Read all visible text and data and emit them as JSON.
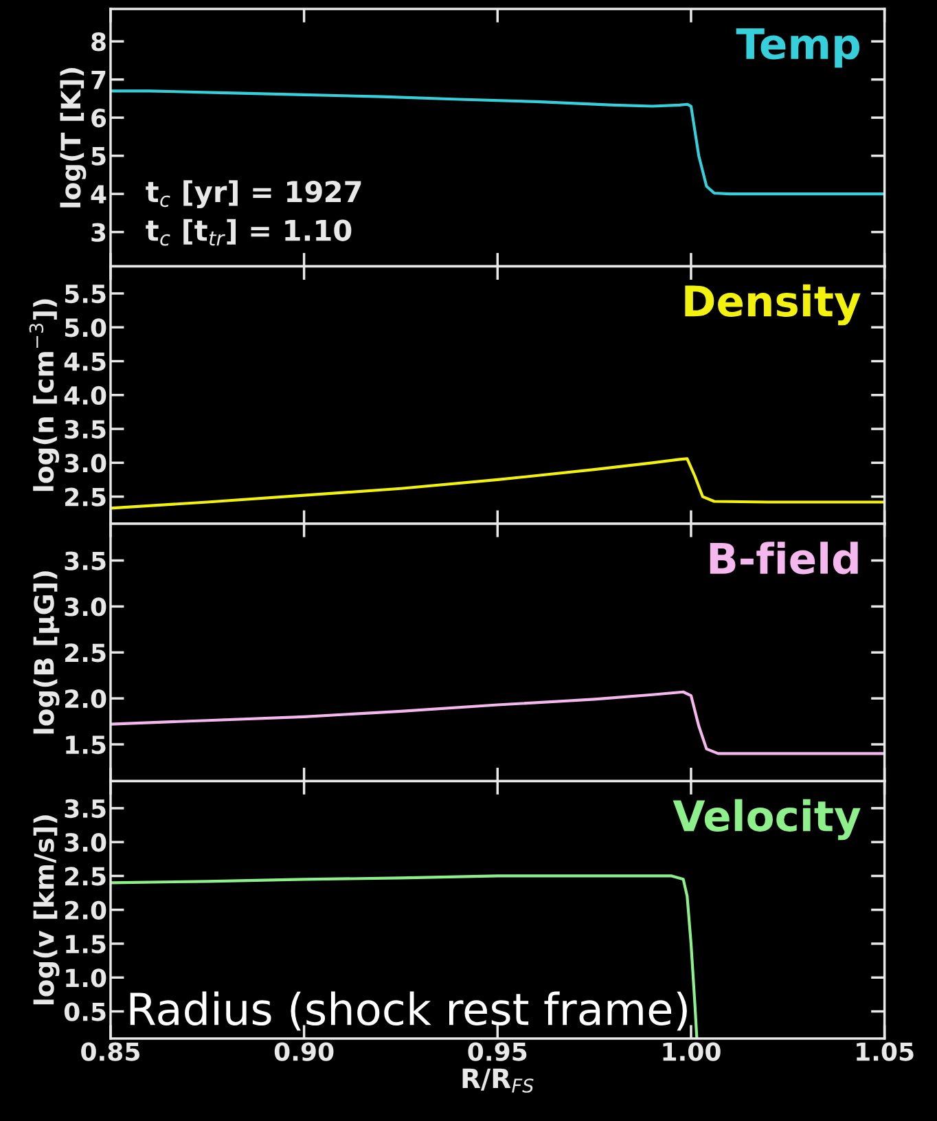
{
  "chart_data": [
    {
      "type": "line",
      "ylabel": "log(T [K])",
      "xlim": [
        0.85,
        1.05
      ],
      "xticks": [
        0.85,
        0.9,
        0.95,
        1.0,
        1.05
      ],
      "ylim": [
        2.1,
        8.85
      ],
      "yticks": [
        3,
        4,
        5,
        6,
        7,
        8
      ],
      "tick_labels": "y",
      "x": [
        0.85,
        0.86,
        0.88,
        0.9,
        0.92,
        0.94,
        0.96,
        0.98,
        0.99,
        0.997,
        0.999,
        1.0,
        1.002,
        1.004,
        1.006,
        1.01,
        1.03,
        1.05
      ],
      "series": [
        {
          "name": "Temp",
          "color": "#35d0dc",
          "values": [
            6.7,
            6.7,
            6.65,
            6.6,
            6.55,
            6.48,
            6.42,
            6.33,
            6.3,
            6.33,
            6.35,
            6.3,
            5.0,
            4.2,
            4.02,
            4.0,
            4.0,
            4.0
          ]
        }
      ],
      "annotations": [
        "t$_{c}$ [yr] = 1927",
        "t$_{c}$ [t$_{tr}$] = 1.10"
      ]
    },
    {
      "type": "line",
      "ylabel": "log(n [cm$^{−3}$])",
      "xlim": [
        0.85,
        1.05
      ],
      "xticks": [
        0.85,
        0.9,
        0.95,
        1.0,
        1.05
      ],
      "ylim": [
        2.1,
        5.9
      ],
      "yticks": [
        2.5,
        {
          "value": 3,
          "label": "3.0"
        },
        3.5,
        {
          "value": 4,
          "label": "4.0"
        },
        4.5,
        {
          "value": 5,
          "label": "5.0"
        },
        5.5
      ],
      "tick_labels": "y",
      "x": [
        0.85,
        0.875,
        0.9,
        0.925,
        0.95,
        0.975,
        0.99,
        0.997,
        0.999,
        1.001,
        1.003,
        1.006,
        1.02,
        1.05
      ],
      "series": [
        {
          "name": "Density",
          "color": "#f2f20c",
          "values": [
            2.33,
            2.42,
            2.52,
            2.62,
            2.75,
            2.9,
            3.0,
            3.05,
            3.06,
            2.8,
            2.5,
            2.43,
            2.42,
            2.42
          ]
        }
      ]
    },
    {
      "type": "line",
      "ylabel": "log(B [μG])",
      "xlim": [
        0.85,
        1.05
      ],
      "xticks": [
        0.85,
        0.9,
        0.95,
        1.0,
        1.05
      ],
      "ylim": [
        1.1,
        3.9
      ],
      "yticks": [
        1.5,
        {
          "value": 2,
          "label": "2.0"
        },
        2.5,
        {
          "value": 3,
          "label": "3.0"
        },
        3.5
      ],
      "tick_labels": "y",
      "x": [
        0.85,
        0.875,
        0.9,
        0.925,
        0.95,
        0.975,
        0.99,
        0.998,
        1.0,
        1.002,
        1.004,
        1.007,
        1.02,
        1.05
      ],
      "series": [
        {
          "name": "B-field",
          "color": "#f4b8ee",
          "values": [
            1.72,
            1.76,
            1.8,
            1.86,
            1.93,
            1.99,
            2.04,
            2.07,
            2.03,
            1.7,
            1.45,
            1.4,
            1.4,
            1.4
          ]
        }
      ]
    },
    {
      "type": "line",
      "ylabel": "log(v [km/s])",
      "xlabel": "R/R$_{FS}$",
      "xlim": [
        0.85,
        1.05
      ],
      "xticks": [
        0.85,
        {
          "value": 0.9,
          "label": "0.90"
        },
        0.95,
        {
          "value": 1.0,
          "label": "1.00"
        },
        1.05
      ],
      "ylim": [
        0.1,
        3.9
      ],
      "yticks": [
        0.5,
        {
          "value": 1,
          "label": "1.0"
        },
        1.5,
        {
          "value": 2,
          "label": "2.0"
        },
        2.5,
        {
          "value": 3,
          "label": "3.0"
        },
        3.5
      ],
      "x": [
        0.85,
        0.875,
        0.9,
        0.925,
        0.95,
        0.975,
        0.995,
        0.998,
        0.999,
        1.0,
        1.001,
        1.0015
      ],
      "series": [
        {
          "name": "Velocity",
          "color": "#8ef08a",
          "values": [
            2.4,
            2.42,
            2.45,
            2.47,
            2.5,
            2.5,
            2.5,
            2.45,
            2.2,
            1.5,
            0.6,
            0.1
          ]
        }
      ],
      "annotations": [
        "Radius (shock rest frame)"
      ]
    }
  ]
}
